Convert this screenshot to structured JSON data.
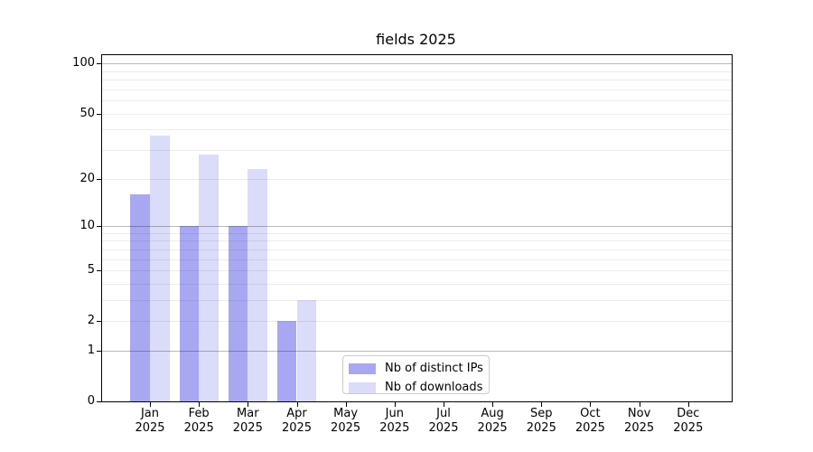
{
  "chart_data": {
    "type": "bar",
    "title": "fields 2025",
    "categories": [
      "Jan",
      "Feb",
      "Mar",
      "Apr",
      "May",
      "Jun",
      "Jul",
      "Aug",
      "Sep",
      "Oct",
      "Nov",
      "Dec"
    ],
    "x_year_label": "2025",
    "series": [
      {
        "name": "Nb of distinct IPs",
        "color": "#a8a8f2",
        "values": [
          16,
          10,
          10,
          2,
          0,
          0,
          0,
          0,
          0,
          0,
          0,
          0
        ]
      },
      {
        "name": "Nb of downloads",
        "color": "#dbdbfa",
        "values": [
          37,
          28,
          23,
          3,
          0,
          0,
          0,
          0,
          0,
          0,
          0,
          0
        ]
      }
    ],
    "y_ticks": [
      100,
      50,
      20,
      10,
      5,
      2,
      1,
      0
    ],
    "y_scale": "log10(value+1)",
    "ylim": [
      0,
      112
    ],
    "grid": {
      "major_values": [
        1,
        10,
        100
      ],
      "minor_values": [
        2,
        3,
        4,
        5,
        6,
        7,
        8,
        9,
        20,
        30,
        40,
        50,
        60,
        70,
        80,
        90
      ]
    },
    "legend": {
      "position": "lower-center"
    }
  }
}
